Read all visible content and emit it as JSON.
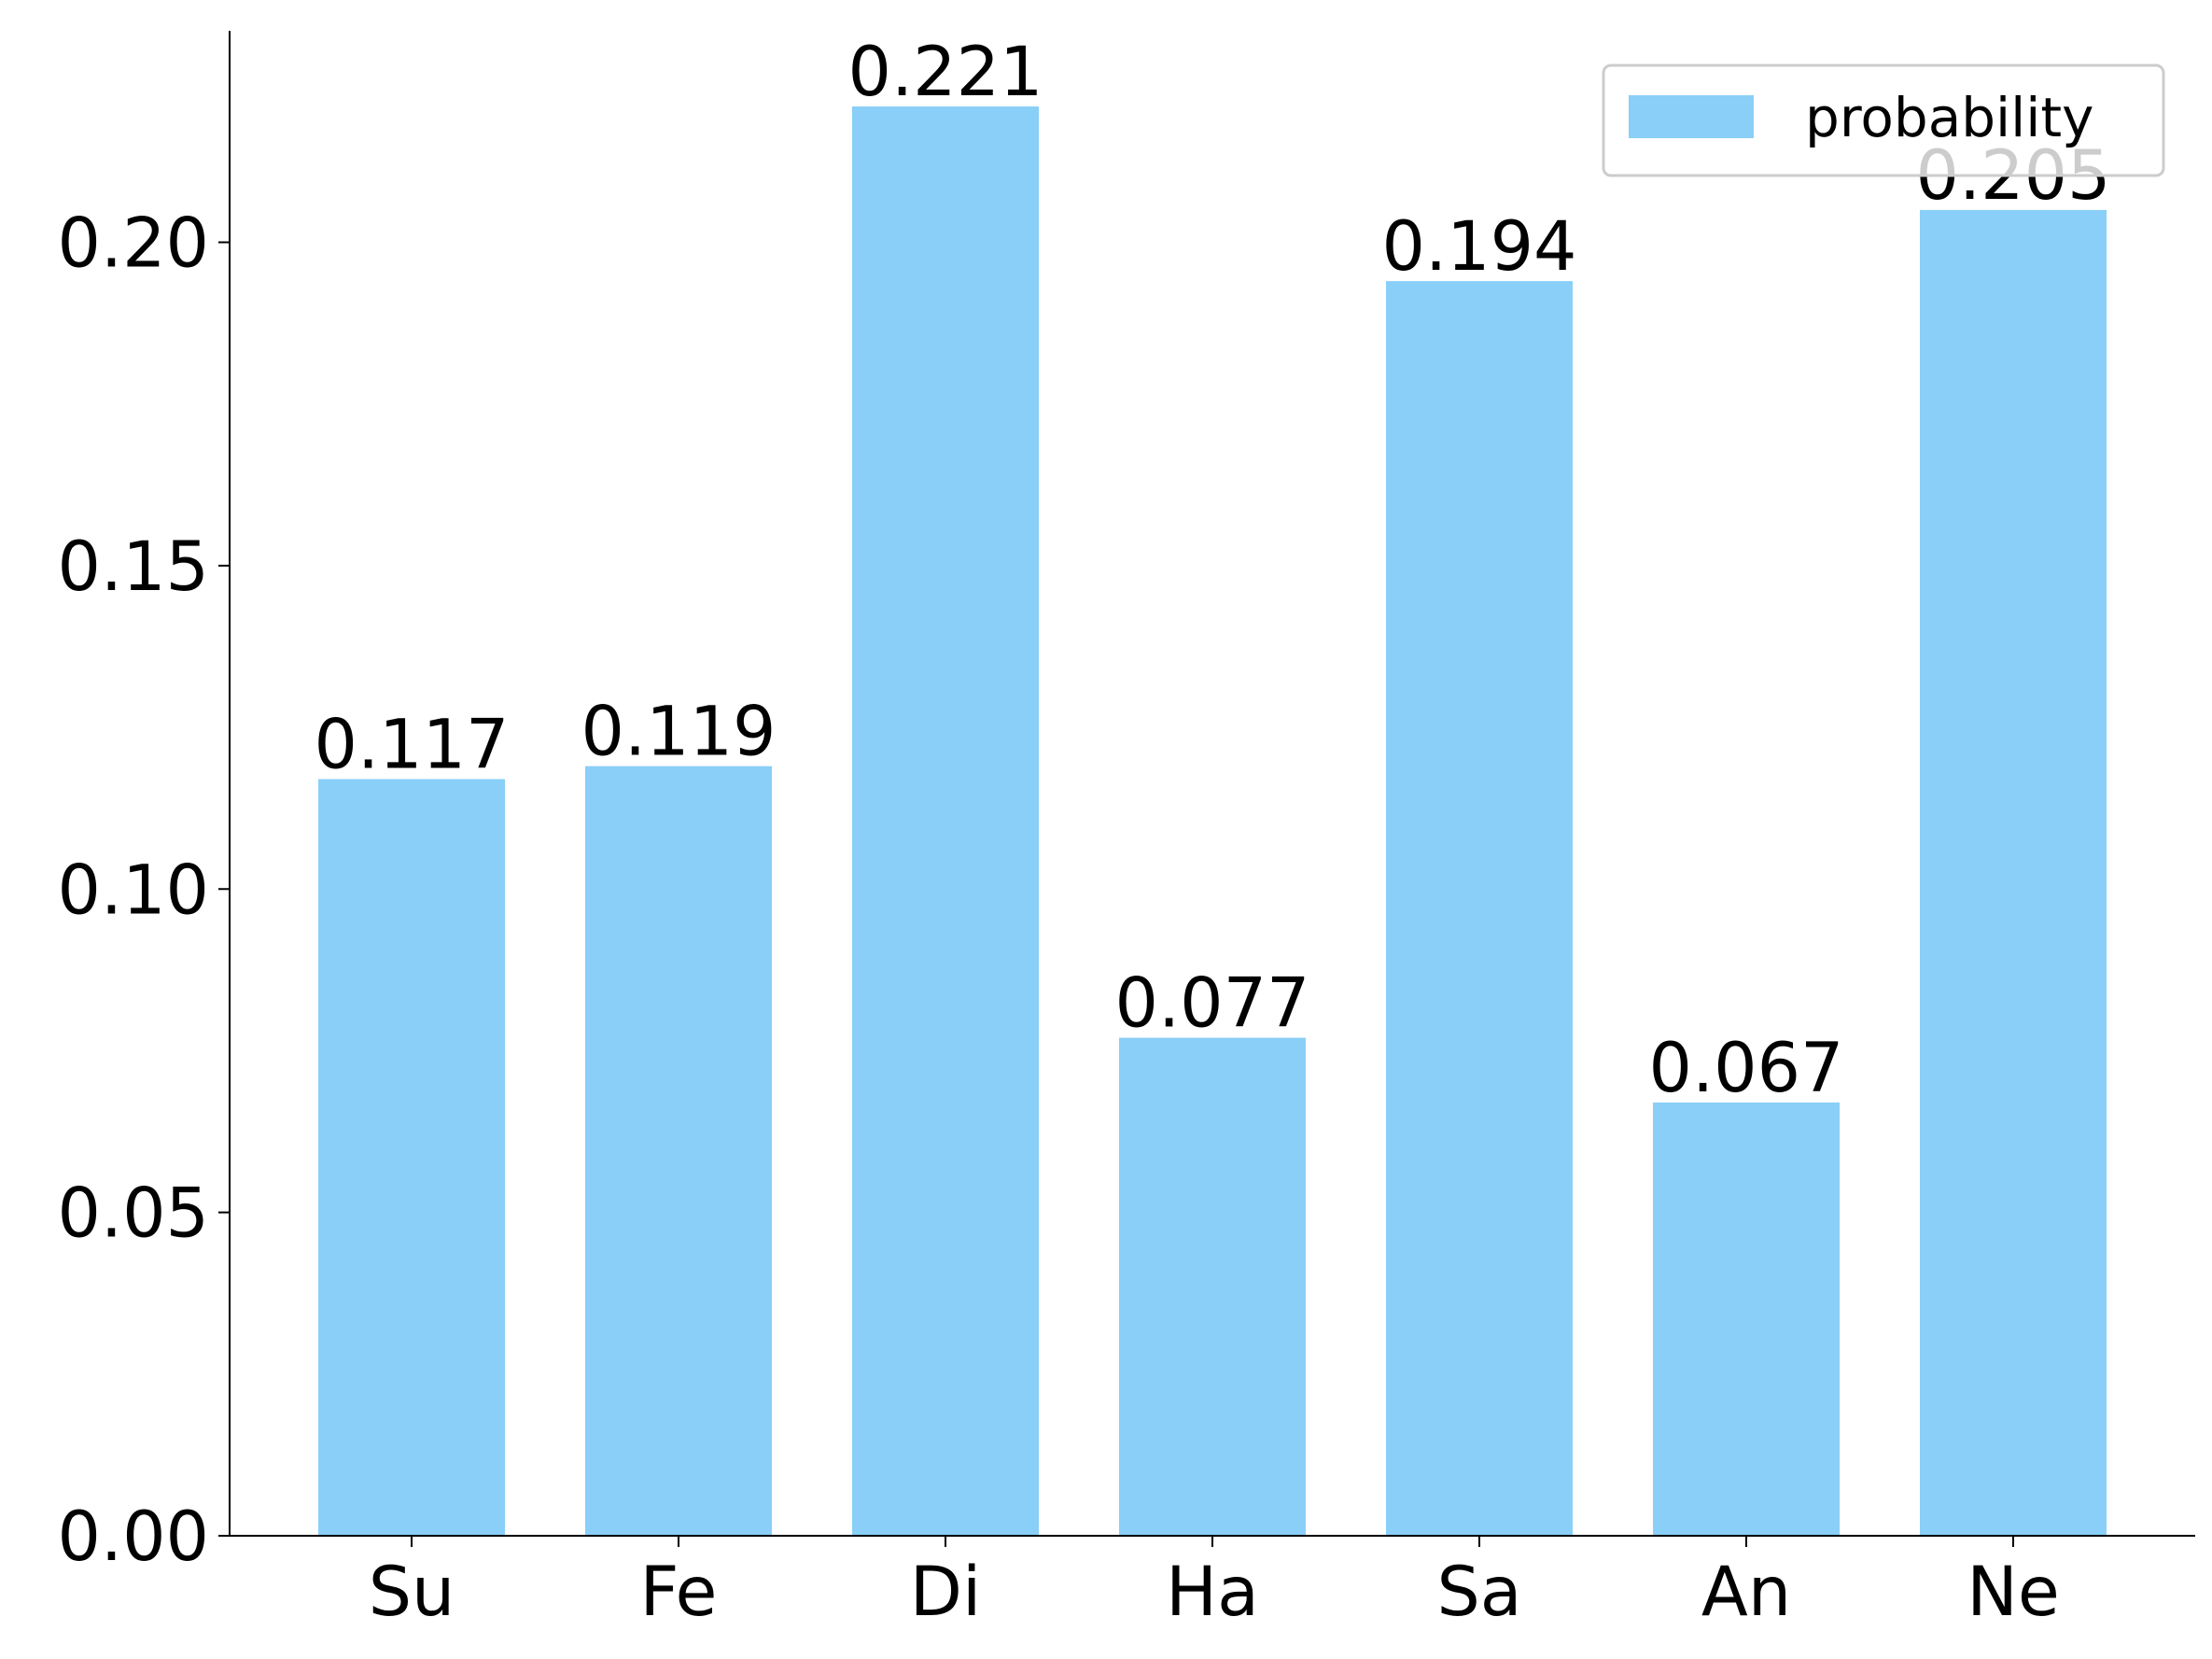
{
  "chart_data": {
    "type": "bar",
    "categories": [
      "Su",
      "Fe",
      "Di",
      "Ha",
      "Sa",
      "An",
      "Ne"
    ],
    "series": [
      {
        "name": "probability",
        "color": "#89cff8",
        "values": [
          0.117,
          0.119,
          0.221,
          0.077,
          0.194,
          0.067,
          0.205
        ]
      }
    ],
    "ylim": [
      0,
      0.2327
    ],
    "yticks": [
      {
        "value": 0,
        "label": "0.00"
      },
      0.05,
      {
        "value": 0.1,
        "label": "0.10"
      },
      0.15,
      {
        "value": 0.2,
        "label": "0.20"
      }
    ],
    "legend": "upper right"
  }
}
